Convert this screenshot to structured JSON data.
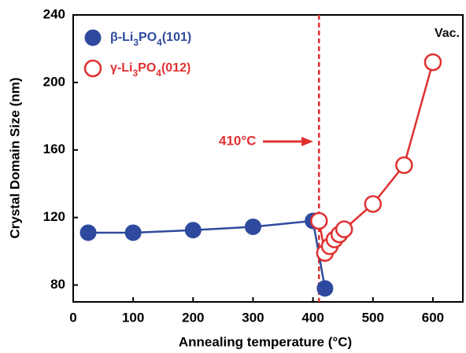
{
  "chart_data": {
    "type": "line",
    "x_label": "Annealing temperature (°C)",
    "y_label": "Crystal Domain Size (nm)",
    "xlim": [
      0,
      650
    ],
    "ylim": [
      70,
      240
    ],
    "xticks": [
      0,
      100,
      200,
      300,
      400,
      500,
      600
    ],
    "yticks": [
      80,
      120,
      160,
      200,
      240
    ],
    "series": [
      {
        "name": "β-Li3PO4(101)",
        "color": "#2e4a9e",
        "marker": "filled",
        "x": [
          25,
          100,
          200,
          300,
          400,
          420
        ],
        "values": [
          111,
          111,
          112.5,
          114.5,
          118,
          78
        ]
      },
      {
        "name": "γ-Li3PO4(012)",
        "color": "#e03030",
        "marker": "open",
        "x": [
          410,
          420,
          428,
          436,
          444,
          452,
          500,
          552,
          600
        ],
        "values": [
          118,
          99,
          103,
          107,
          110,
          113,
          128,
          151,
          212
        ]
      }
    ],
    "reference_line_x": 410,
    "annotations": {
      "reference": "410°C",
      "condition": "Vac."
    }
  }
}
